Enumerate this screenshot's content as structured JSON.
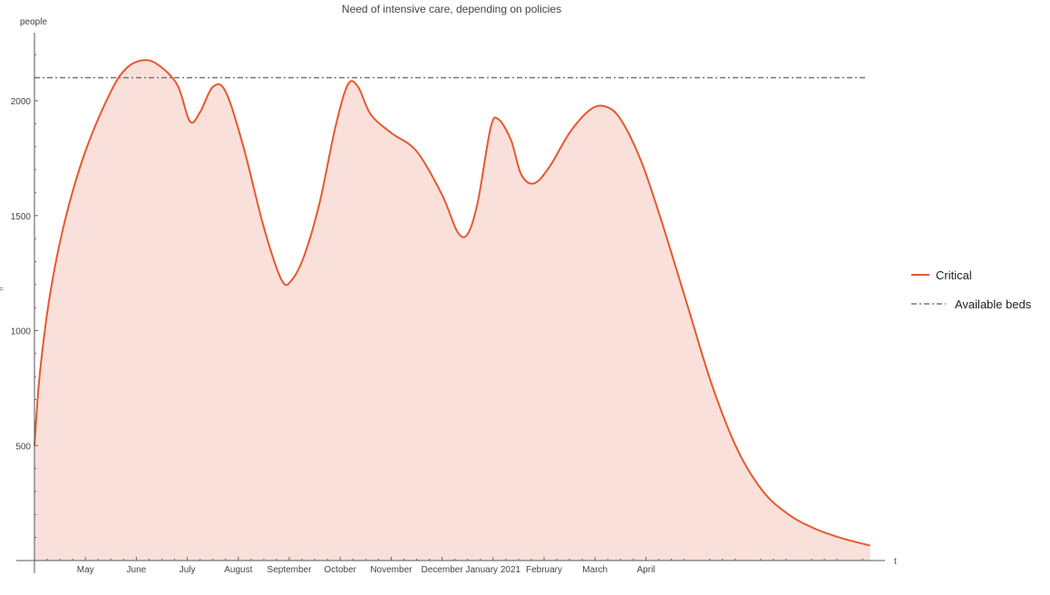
{
  "chart_data": {
    "type": "area",
    "title": "Need of intensive care, depending on policies",
    "xlabel": "t",
    "ylabel": "people",
    "ylim": [
      0,
      2300
    ],
    "xlim": [
      0,
      16.6
    ],
    "yticks": [
      500,
      1000,
      1500,
      2000
    ],
    "xticks": [
      {
        "x": 1,
        "label": "May"
      },
      {
        "x": 2,
        "label": "June"
      },
      {
        "x": 3,
        "label": "July"
      },
      {
        "x": 4,
        "label": "August"
      },
      {
        "x": 5,
        "label": "September"
      },
      {
        "x": 6,
        "label": "October"
      },
      {
        "x": 7,
        "label": "November"
      },
      {
        "x": 8,
        "label": "December"
      },
      {
        "x": 9,
        "label": "January 2021"
      },
      {
        "x": 10,
        "label": "February"
      },
      {
        "x": 11,
        "label": "March"
      },
      {
        "x": 12,
        "label": "April"
      }
    ],
    "series": [
      {
        "name": "Critical",
        "color": "#e8582f",
        "fill": "#f9e0da",
        "x": [
          0,
          0.1,
          0.3,
          0.6,
          1,
          1.5,
          1.8,
          2.1,
          2.4,
          2.8,
          3.05,
          3.25,
          3.5,
          3.75,
          4.1,
          4.5,
          4.85,
          5.05,
          5.3,
          5.6,
          5.9,
          6.15,
          6.35,
          6.6,
          7.0,
          7.5,
          8.0,
          8.3,
          8.5,
          8.7,
          8.95,
          9.1,
          9.35,
          9.55,
          9.8,
          10.1,
          10.5,
          10.9,
          11.2,
          11.5,
          11.9,
          12.3,
          12.8,
          13.3,
          13.8,
          14.3,
          14.8,
          15.3,
          15.8,
          16.4
        ],
        "values": [
          500,
          800,
          1150,
          1480,
          1780,
          2040,
          2140,
          2175,
          2160,
          2070,
          1910,
          1950,
          2060,
          2040,
          1800,
          1450,
          1220,
          1220,
          1330,
          1560,
          1880,
          2070,
          2060,
          1940,
          1860,
          1780,
          1590,
          1430,
          1420,
          1560,
          1880,
          1920,
          1830,
          1680,
          1640,
          1710,
          1860,
          1960,
          1975,
          1920,
          1740,
          1480,
          1120,
          760,
          480,
          300,
          200,
          140,
          100,
          65
        ]
      },
      {
        "name": "Available beds",
        "color": "#777777",
        "style": "dash-dot",
        "x": [
          0,
          16.6
        ],
        "values": [
          2100,
          2100
        ]
      }
    ],
    "legend_position": "right"
  },
  "side_marker": "="
}
